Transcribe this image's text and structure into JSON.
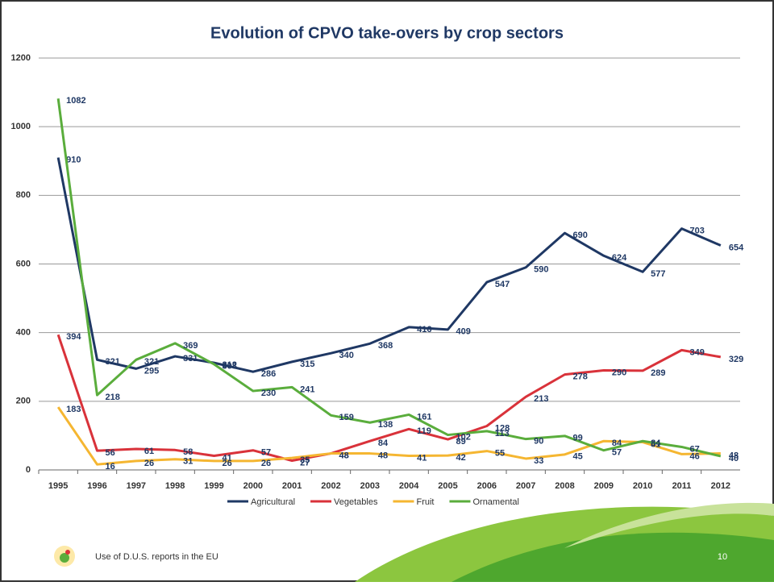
{
  "chart_data": {
    "type": "line",
    "title": "Evolution of CPVO take-overs by crop sectors",
    "categories": [
      "1995",
      "1996",
      "1997",
      "1998",
      "1999",
      "2000",
      "2001",
      "2002",
      "2003",
      "2004",
      "2005",
      "2006",
      "2007",
      "2008",
      "2009",
      "2010",
      "2011",
      "2012"
    ],
    "series": [
      {
        "name": "Agricultural",
        "color": "#1f3864",
        "values": [
          910,
          321,
          295,
          331,
          312,
          286,
          315,
          340,
          368,
          416,
          409,
          547,
          590,
          690,
          624,
          577,
          703,
          654
        ]
      },
      {
        "name": "Vegetables",
        "color": "#d9323a",
        "values": [
          394,
          56,
          61,
          58,
          41,
          57,
          27,
          48,
          84,
          119,
          89,
          128,
          213,
          278,
          290,
          289,
          349,
          329
        ]
      },
      {
        "name": "Fruit",
        "color": "#f5b631",
        "values": [
          183,
          16,
          26,
          31,
          26,
          26,
          35,
          48,
          48,
          41,
          42,
          55,
          33,
          45,
          84,
          81,
          46,
          48
        ]
      },
      {
        "name": "Ornamental",
        "color": "#5aad3c",
        "values": [
          1082,
          218,
          321,
          369,
          308,
          230,
          241,
          159,
          138,
          161,
          102,
          113,
          90,
          99,
          57,
          84,
          67,
          40
        ]
      }
    ],
    "ylim": [
      0,
      1200
    ],
    "yticks": [
      0,
      200,
      400,
      600,
      800,
      1000,
      1200
    ],
    "grid": true,
    "legend": "bottom"
  },
  "footer": {
    "text": "Use of D.U.S. reports in the EU",
    "page": "10"
  }
}
